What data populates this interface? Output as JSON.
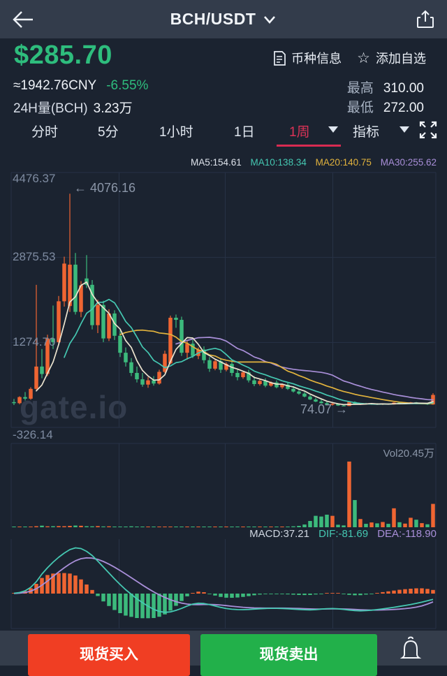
{
  "topbar": {
    "title": "BCH/USDT"
  },
  "price": {
    "current": "$285.70",
    "cny": "≈1942.76CNY",
    "change": "-6.55%",
    "vol24_label": "24H量(BCH)",
    "vol24_value": "3.23万",
    "coin_info": "币种信息",
    "add_favorite": "添加自选",
    "high_label": "最高",
    "high_value": "310.00",
    "low_label": "最低",
    "low_value": "272.00",
    "up_color": "#2ebd7d"
  },
  "tabs": {
    "items": [
      {
        "label": "分时"
      },
      {
        "label": "5分"
      },
      {
        "label": "1小时"
      },
      {
        "label": "1日"
      },
      {
        "label": "1周"
      },
      {
        "label": "指标"
      }
    ],
    "active": "1周",
    "active_color": "#dc3357"
  },
  "ma_labels": {
    "ma5": "MA5:154.61",
    "ma10": "MA10:138.34",
    "ma20": "MA20:140.75",
    "ma30": "MA30:255.62"
  },
  "watermark": "gate.io",
  "indicators": {
    "vol_label": "Vol20.45万",
    "macd": "MACD:37.21",
    "dif": "DIF:-81.69",
    "dea": "DEA:-118.90"
  },
  "footer": {
    "buy": "现货买入",
    "sell": "现货卖出"
  },
  "chart_data": {
    "type": "candlestick",
    "interval": "1周",
    "y_axis_labels": [
      "4476.37",
      "2875.53",
      "1274.70",
      "-326.14"
    ],
    "y_max": 4476.37,
    "y_min": -326.14,
    "max_annotation": "← 4076.16",
    "min_annotation": "74.07 →",
    "max_value": 4076.16,
    "min_value": 74.07,
    "legend": [
      "MA5",
      "MA10",
      "MA20",
      "MA30"
    ],
    "colors": {
      "up": "#ef6532",
      "down": "#3cba7c",
      "ma5": "#ece4cf",
      "ma10": "#45c8b2",
      "ma20": "#e2b33d",
      "ma30": "#a98fd9",
      "dif": "#45c8b2",
      "dea": "#a98fd9",
      "grid": "#273246"
    },
    "candles": [
      [
        150,
        210,
        95,
        130
      ],
      [
        130,
        260,
        110,
        245
      ],
      [
        245,
        340,
        180,
        215
      ],
      [
        215,
        430,
        195,
        400
      ],
      [
        400,
        2360,
        380,
        820
      ],
      [
        820,
        1150,
        600,
        680
      ],
      [
        680,
        1420,
        640,
        1350
      ],
      [
        1350,
        1970,
        1150,
        1280
      ],
      [
        1280,
        2150,
        1220,
        2050
      ],
      [
        2050,
        2890,
        1950,
        2760
      ],
      [
        1960,
        4076.16,
        1850,
        2740
      ],
      [
        2740,
        2960,
        1800,
        1850
      ],
      [
        1850,
        2430,
        1750,
        2350
      ],
      [
        2480,
        2920,
        2300,
        2360
      ],
      [
        2360,
        2450,
        1520,
        1600
      ],
      [
        1600,
        2080,
        1450,
        1980
      ],
      [
        1980,
        2060,
        1280,
        1350
      ],
      [
        1350,
        1900,
        1300,
        1820
      ],
      [
        1820,
        1880,
        1320,
        1400
      ],
      [
        1400,
        1500,
        1000,
        1080
      ],
      [
        1080,
        1180,
        820,
        900
      ],
      [
        900,
        980,
        640,
        700
      ],
      [
        700,
        820,
        520,
        580
      ],
      [
        580,
        700,
        440,
        480
      ],
      [
        480,
        620,
        420,
        560
      ],
      [
        560,
        640,
        460,
        500
      ],
      [
        500,
        760,
        480,
        720
      ],
      [
        720,
        1120,
        700,
        1060
      ],
      [
        880,
        1780,
        860,
        1740
      ],
      [
        1740,
        1800,
        1550,
        1700
      ],
      [
        1700,
        1760,
        1020,
        1080
      ],
      [
        1080,
        1300,
        950,
        1250
      ],
      [
        1250,
        1320,
        980,
        1020
      ],
      [
        1020,
        1180,
        960,
        1140
      ],
      [
        1140,
        1200,
        880,
        940
      ],
      [
        940,
        1000,
        720,
        780
      ],
      [
        780,
        960,
        750,
        920
      ],
      [
        920,
        980,
        700,
        760
      ],
      [
        760,
        900,
        730,
        870
      ],
      [
        870,
        930,
        640,
        700
      ],
      [
        700,
        780,
        560,
        620
      ],
      [
        620,
        740,
        590,
        710
      ],
      [
        710,
        760,
        520,
        560
      ],
      [
        560,
        640,
        450,
        490
      ],
      [
        490,
        580,
        460,
        550
      ],
      [
        550,
        600,
        430,
        460
      ],
      [
        460,
        540,
        440,
        520
      ],
      [
        520,
        560,
        410,
        430
      ],
      [
        430,
        500,
        400,
        480
      ],
      [
        480,
        520,
        380,
        400
      ],
      [
        400,
        450,
        330,
        350
      ],
      [
        350,
        390,
        290,
        310
      ],
      [
        310,
        340,
        240,
        255
      ],
      [
        255,
        285,
        190,
        200
      ],
      [
        200,
        230,
        150,
        160
      ],
      [
        160,
        200,
        120,
        130
      ],
      [
        130,
        165,
        92,
        100
      ],
      [
        100,
        140,
        85,
        120
      ],
      [
        120,
        130,
        78,
        86
      ],
      [
        86,
        105,
        74.07,
        78
      ],
      [
        78,
        162,
        75,
        152
      ],
      [
        152,
        165,
        98,
        108
      ],
      [
        108,
        132,
        96,
        126
      ],
      [
        126,
        136,
        104,
        112
      ],
      [
        112,
        130,
        100,
        124
      ],
      [
        124,
        130,
        98,
        104
      ],
      [
        104,
        126,
        96,
        120
      ],
      [
        120,
        128,
        100,
        106
      ],
      [
        106,
        148,
        102,
        140
      ],
      [
        140,
        150,
        114,
        120
      ],
      [
        120,
        136,
        108,
        130
      ],
      [
        130,
        152,
        122,
        145
      ],
      [
        145,
        152,
        116,
        124
      ],
      [
        124,
        140,
        112,
        134
      ],
      [
        134,
        138,
        98,
        106
      ],
      [
        106,
        318,
        100,
        285.7
      ]
    ],
    "volumes": [
      0.3,
      0.4,
      0.5,
      0.6,
      0.9,
      1.4,
      0.8,
      0.9,
      1.0,
      0.9,
      1.2,
      1.5,
      1.3,
      0.9,
      0.8,
      1.0,
      0.7,
      0.8,
      0.6,
      0.5,
      0.5,
      0.8,
      0.6,
      0.6,
      0.5,
      0.5,
      0.4,
      0.5,
      0.4,
      0.4,
      0.4,
      0.4,
      0.3,
      0.4,
      0.3,
      0.3,
      0.3,
      0.4,
      0.3,
      0.3,
      0.4,
      0.3,
      0.3,
      0.4,
      0.3,
      0.3,
      0.4,
      0.3,
      0.4,
      0.5,
      0.8,
      1.2,
      2.4,
      5.5,
      10.0,
      9.4,
      11.0,
      10.0,
      2.2,
      1.6,
      57.5,
      23.8,
      7.2,
      3.0,
      4.2,
      3.4,
      4.6,
      3.0,
      16.6,
      4.4,
      3.2,
      8.3,
      6.6,
      3.6,
      2.6,
      20.45
    ],
    "macd": {
      "dif": [
        5,
        15,
        40,
        90,
        170,
        280,
        370,
        450,
        520,
        580,
        630,
        655,
        645,
        605,
        545,
        465,
        380,
        295,
        210,
        130,
        55,
        -10,
        -75,
        -130,
        -180,
        -225,
        -255,
        -268,
        -262,
        -240,
        -212,
        -178,
        -150,
        -138,
        -142,
        -158,
        -178,
        -198,
        -214,
        -224,
        -229,
        -230,
        -227,
        -222,
        -217,
        -213,
        -211,
        -211,
        -213,
        -217,
        -222,
        -227,
        -231,
        -233,
        -230,
        -222,
        -216,
        -214,
        -218,
        -226,
        -236,
        -244,
        -247,
        -244,
        -238,
        -229,
        -219,
        -208,
        -196,
        -183,
        -170,
        -156,
        -140,
        -122,
        -102,
        -81.69
      ],
      "dea": [
        2,
        6,
        15,
        35,
        70,
        120,
        180,
        245,
        310,
        370,
        425,
        470,
        500,
        512,
        508,
        490,
        460,
        422,
        378,
        330,
        280,
        228,
        175,
        122,
        72,
        25,
        -18,
        -55,
        -88,
        -115,
        -136,
        -150,
        -157,
        -158,
        -156,
        -155,
        -158,
        -164,
        -172,
        -181,
        -189,
        -196,
        -201,
        -205,
        -207,
        -208,
        -208,
        -208,
        -208,
        -209,
        -211,
        -213,
        -216,
        -219,
        -221,
        -221,
        -220,
        -219,
        -219,
        -220,
        -223,
        -227,
        -231,
        -234,
        -236,
        -236,
        -234,
        -231,
        -227,
        -222,
        -215,
        -206,
        -194,
        -176,
        -150,
        -118.9
      ]
    }
  }
}
